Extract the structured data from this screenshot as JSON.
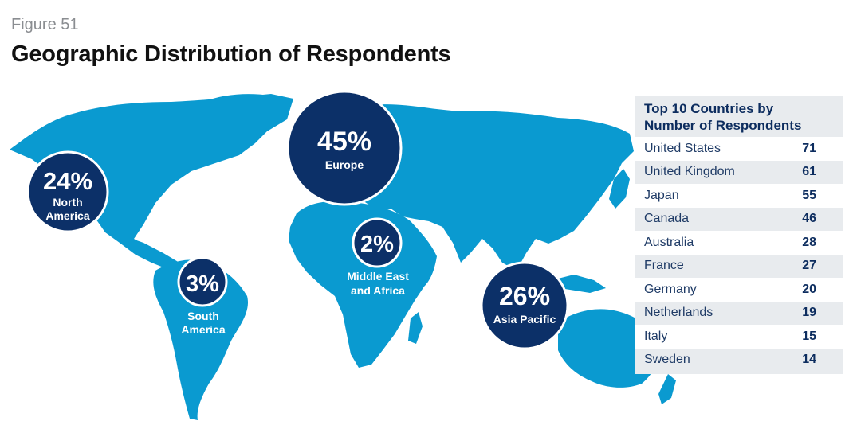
{
  "figure_label": "Figure 51",
  "title": "Geographic Distribution of Respondents",
  "colors": {
    "land": "#0a9ad0",
    "bubble": "#0c3068",
    "panel_bg": "#e8ebee",
    "text_dark": "#0d2d5f"
  },
  "regions": [
    {
      "name": "North America",
      "label_lines": [
        "North",
        "America"
      ],
      "percent": "24%",
      "value": 24
    },
    {
      "name": "Europe",
      "label_lines": [
        "Europe"
      ],
      "percent": "45%",
      "value": 45
    },
    {
      "name": "Middle East and Africa",
      "label_lines": [
        "Middle East",
        "and Africa"
      ],
      "percent": "2%",
      "value": 2
    },
    {
      "name": "South America",
      "label_lines": [
        "South",
        "America"
      ],
      "percent": "3%",
      "value": 3
    },
    {
      "name": "Asia Pacific",
      "label_lines": [
        "Asia Pacific"
      ],
      "percent": "26%",
      "value": 26
    }
  ],
  "top_countries": {
    "title_line1": "Top 10 Countries by",
    "title_line2": "Number of Respondents",
    "rows": [
      {
        "country": "United States",
        "count": "71"
      },
      {
        "country": "United Kingdom",
        "count": "61"
      },
      {
        "country": "Japan",
        "count": "55"
      },
      {
        "country": "Canada",
        "count": "46"
      },
      {
        "country": "Australia",
        "count": "28"
      },
      {
        "country": "France",
        "count": "27"
      },
      {
        "country": "Germany",
        "count": "20"
      },
      {
        "country": "Netherlands",
        "count": "19"
      },
      {
        "country": "Italy",
        "count": "15"
      },
      {
        "country": "Sweden",
        "count": "14"
      }
    ]
  }
}
